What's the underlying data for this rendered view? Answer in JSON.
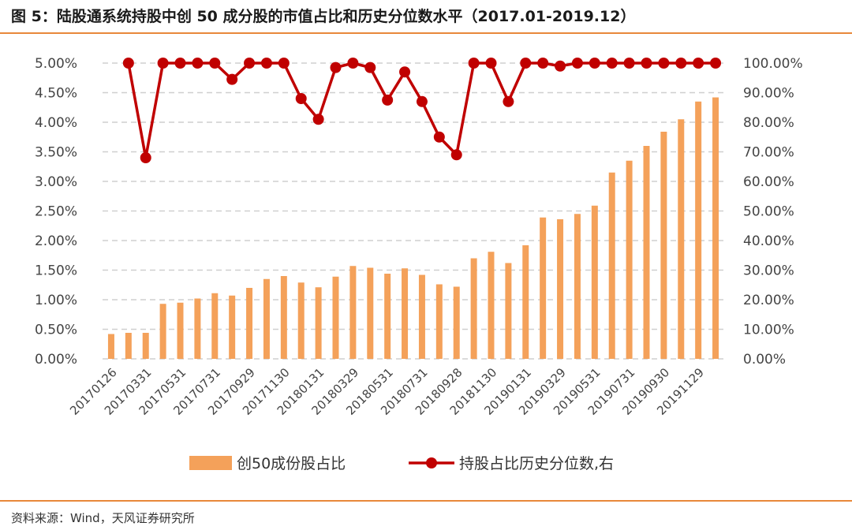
{
  "title": "图 5：陆股通系统持股中创 50 成分股的市值占比和历史分位数水平（2017.01-2019.12）",
  "source": "资料来源：Wind，天风证券研究所",
  "colors": {
    "bar": "#f4a15a",
    "line": "#c00000",
    "rule": "#e8883a",
    "grid": "#cfcfcf"
  },
  "chart_data": {
    "type": "bar+line",
    "left_axis": {
      "ticks": [
        "0.00%",
        "0.50%",
        "1.00%",
        "1.50%",
        "2.00%",
        "2.50%",
        "3.00%",
        "3.50%",
        "4.00%",
        "4.50%",
        "5.00%"
      ],
      "ylim": [
        0,
        5
      ]
    },
    "right_axis": {
      "ticks": [
        "0.00%",
        "10.00%",
        "20.00%",
        "30.00%",
        "40.00%",
        "50.00%",
        "60.00%",
        "70.00%",
        "80.00%",
        "90.00%",
        "100.00%"
      ],
      "ylim": [
        0,
        100
      ]
    },
    "x_tick_labels": [
      "20170126",
      "20170331",
      "20170531",
      "20170731",
      "20170929",
      "20171130",
      "20180131",
      "20180329",
      "20180531",
      "20180731",
      "20180928",
      "20181130",
      "20190131",
      "20190329",
      "20190531",
      "20190731",
      "20190930",
      "20191129"
    ],
    "x_tick_every": 2,
    "series": [
      {
        "name": "创50成份股占比",
        "type": "bar",
        "axis": "left",
        "values": [
          0.42,
          0.44,
          0.44,
          0.93,
          0.95,
          1.02,
          1.11,
          1.07,
          1.2,
          1.35,
          1.4,
          1.29,
          1.21,
          1.39,
          1.57,
          1.54,
          1.44,
          1.53,
          1.42,
          1.26,
          1.22,
          1.7,
          1.81,
          1.62,
          1.92,
          2.39,
          2.36,
          2.45,
          2.59,
          3.15,
          3.35,
          3.6,
          3.84,
          4.05,
          4.35,
          4.42
        ]
      },
      {
        "name": "持股占比历史分位数,右",
        "type": "line",
        "axis": "right",
        "values": [
          null,
          100,
          68,
          100,
          100,
          100,
          100,
          94.5,
          100,
          100,
          100,
          88,
          81,
          98.5,
          100,
          98.5,
          87.5,
          97,
          87,
          75,
          69,
          100,
          100,
          87,
          100,
          100,
          99,
          100,
          100,
          100,
          100,
          100,
          100,
          100,
          100,
          100
        ]
      }
    ],
    "legend_position": "bottom"
  }
}
